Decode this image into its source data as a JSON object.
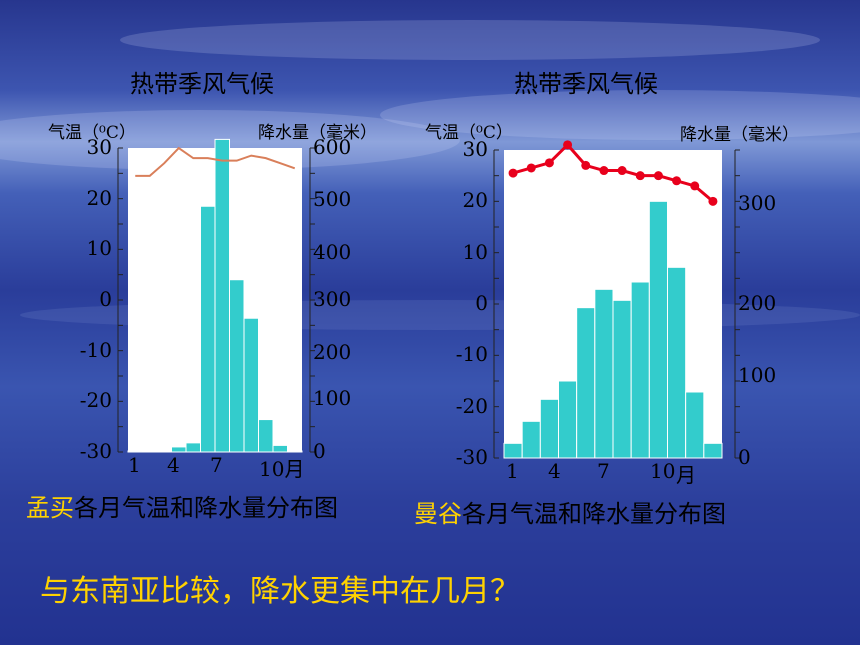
{
  "colors": {
    "bar": "#33cccc",
    "bar_stroke": "#ffffff",
    "line_mumbai": "#d97f5a",
    "line_bangkok": "#e8001c",
    "city_highlight": "#ffd200",
    "question": "#ffd200"
  },
  "chart_data": [
    {
      "type": "bar+line",
      "title": "热带季风气候",
      "caption_city": "孟买",
      "caption_rest": "各月气温和降水量分布图",
      "left_axis_label": "气温（⁰C）",
      "right_axis_label": "降水量（毫米）",
      "left_ticks": [
        "30",
        "20",
        "10",
        "0",
        "-10",
        "-20",
        "-30"
      ],
      "right_ticks": [
        "600",
        "500",
        "400",
        "300",
        "200",
        "100",
        "0"
      ],
      "x_ticks": [
        "1",
        "4",
        "7",
        "10月"
      ],
      "ylim_temp": [
        -30,
        30
      ],
      "ylim_precip": [
        0,
        600
      ],
      "months": [
        1,
        2,
        3,
        4,
        5,
        6,
        7,
        8,
        9,
        10,
        11,
        12
      ],
      "precipitation": [
        2,
        1,
        1,
        10,
        18,
        485,
        617,
        340,
        264,
        64,
        13,
        2
      ],
      "temperature": [
        24.5,
        24.5,
        27,
        30,
        28,
        28,
        27.5,
        27.5,
        28.5,
        28,
        27,
        26
      ]
    },
    {
      "type": "bar+line",
      "title": "热带季风气候",
      "caption_city": "曼谷",
      "caption_rest": "各月气温和降水量分布图",
      "left_axis_label": "气温（⁰C）",
      "right_axis_label": "降水量（毫米）",
      "left_ticks": [
        "30",
        "20",
        "10",
        "0",
        "-10",
        "-20",
        "-30"
      ],
      "right_ticks": [
        "300",
        "200",
        "100",
        "0"
      ],
      "x_ticks": [
        "1",
        "4",
        "7",
        "10",
        "月"
      ],
      "ylim_temp": [
        -30,
        30
      ],
      "ylim_precip": [
        0,
        420
      ],
      "months": [
        1,
        2,
        3,
        4,
        5,
        6,
        7,
        8,
        9,
        10,
        11,
        12
      ],
      "precipitation": [
        20,
        50,
        80,
        105,
        205,
        230,
        215,
        240,
        350,
        260,
        90,
        20
      ],
      "temperature": [
        25.5,
        26.5,
        27.5,
        31,
        27,
        26,
        26,
        25,
        25,
        24,
        23,
        20
      ]
    }
  ],
  "question": "与东南亚比较，降水更集中在几月？"
}
